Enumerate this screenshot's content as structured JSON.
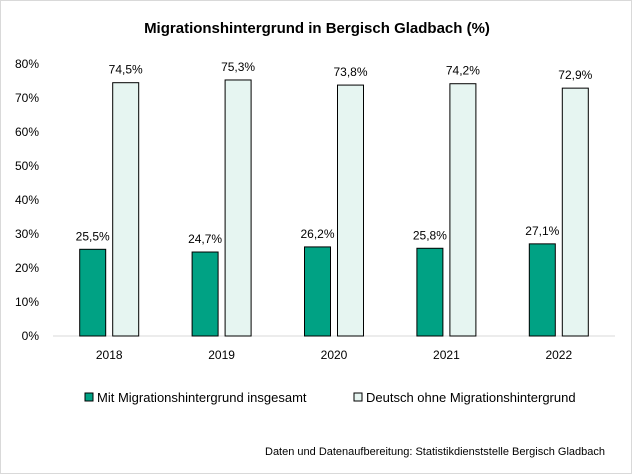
{
  "chart_data": {
    "type": "bar",
    "title": "Migrationshintergrund in Bergisch Gladbach (%)",
    "categories": [
      "2018",
      "2019",
      "2020",
      "2021",
      "2022"
    ],
    "series": [
      {
        "name": "Mit Migrationshintergrund insgesamt",
        "values": [
          25.5,
          24.7,
          26.2,
          25.8,
          27.1
        ],
        "labels": [
          "25,5%",
          "24,7%",
          "26,2%",
          "25,8%",
          "27,1%"
        ],
        "color": "#00a284"
      },
      {
        "name": "Deutsch ohne Migrationshintergrund",
        "values": [
          74.5,
          75.3,
          73.8,
          74.2,
          72.9
        ],
        "labels": [
          "74,5%",
          "75,3%",
          "73,8%",
          "74,2%",
          "72,9%"
        ],
        "color": "#e6f5f1"
      }
    ],
    "yticks": [
      "0%",
      "10%",
      "20%",
      "30%",
      "40%",
      "50%",
      "60%",
      "70%",
      "80%"
    ],
    "ylim": [
      0,
      80
    ],
    "grid": false,
    "legend": "bottom",
    "source": "Daten und Datenaufbereitung: Statistikdienststelle Bergisch Gladbach"
  }
}
